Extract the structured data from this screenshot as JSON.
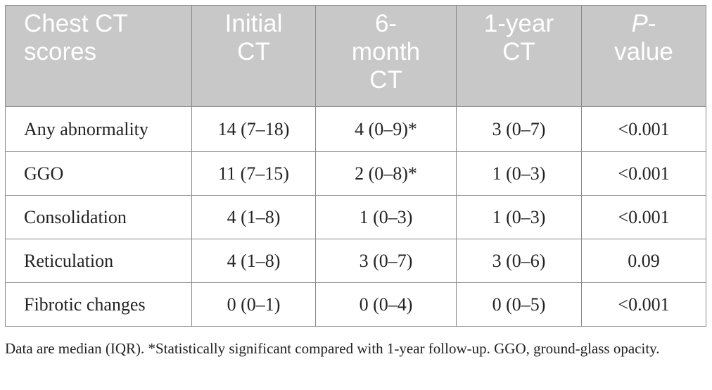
{
  "table": {
    "headers": {
      "col0": "Chest CT scores",
      "col1": "Initial CT",
      "col2": "6-month CT",
      "col3": "1-year CT",
      "col4_italic": "P",
      "col4_rest": "-value"
    },
    "rows": [
      {
        "label": "Any abnormality",
        "initial": "14 (7–18)",
        "six_month": "4 (0–9)*",
        "one_year": "3 (0–7)",
        "p": "<0.001"
      },
      {
        "label": "GGO",
        "initial": "11 (7–15)",
        "six_month": "2 (0–8)*",
        "one_year": "1 (0–3)",
        "p": "<0.001"
      },
      {
        "label": "Consolidation",
        "initial": "4 (1–8)",
        "six_month": "1 (0–3)",
        "one_year": "1 (0–3)",
        "p": "<0.001"
      },
      {
        "label": "Reticulation",
        "initial": "4 (1–8)",
        "six_month": "3 (0–7)",
        "one_year": "3 (0–6)",
        "p": "0.09"
      },
      {
        "label": "Fibrotic changes",
        "initial": "0 (0–1)",
        "six_month": "0 (0–4)",
        "one_year": "0 (0–5)",
        "p": "<0.001"
      }
    ],
    "header_bg": "#c8c8c8",
    "border_color": "#8a8a8a"
  },
  "footnote": "Data are median (IQR). *Statistically significant compared with 1-year follow-up. GGO, ground-glass opacity."
}
